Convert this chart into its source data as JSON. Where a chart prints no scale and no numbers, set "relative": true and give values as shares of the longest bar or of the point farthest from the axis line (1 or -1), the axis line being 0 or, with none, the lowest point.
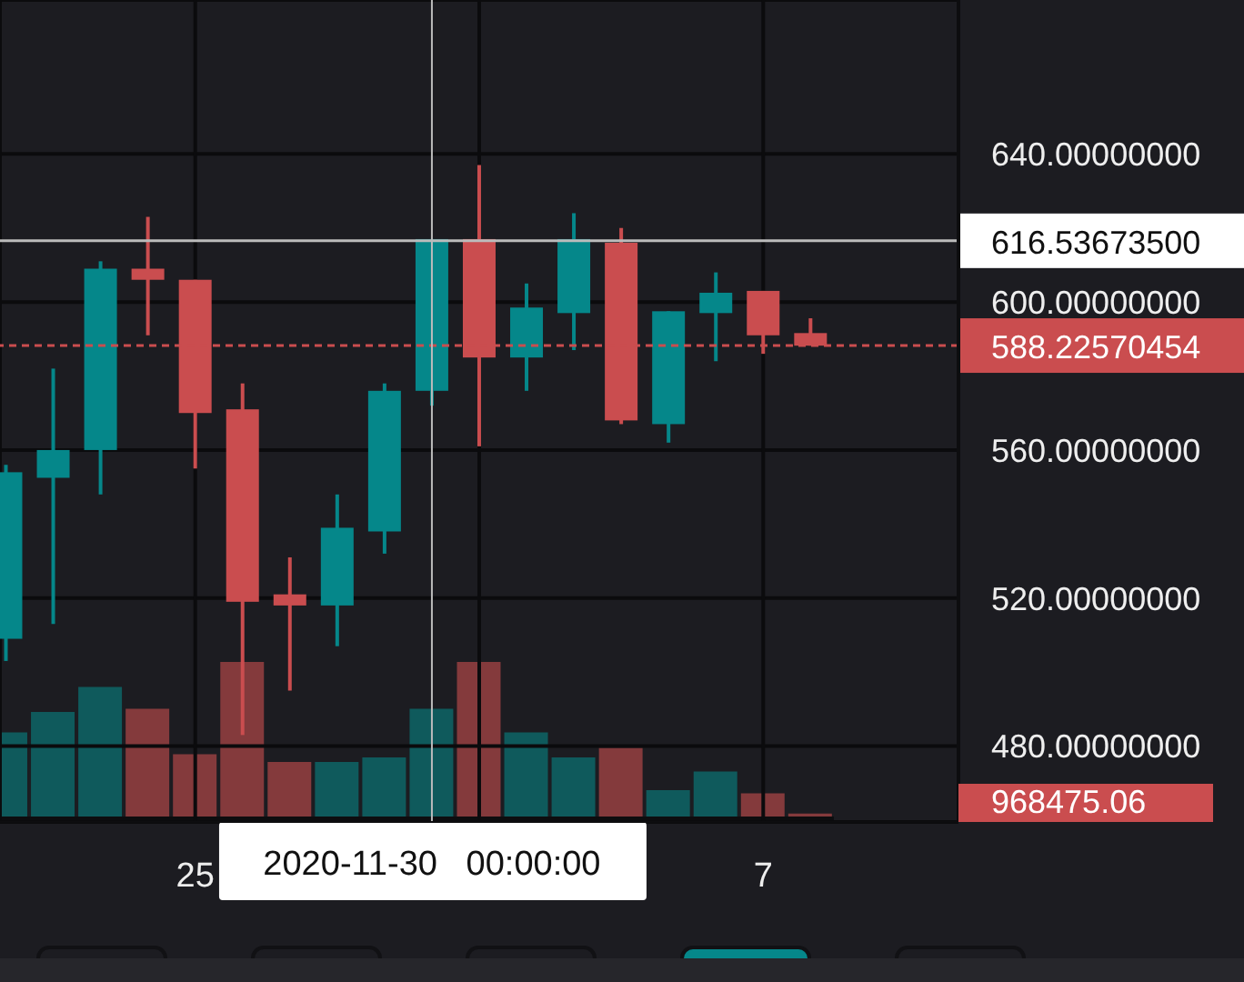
{
  "chart_data": [
    {
      "type": "candlestick",
      "x": [
        "2020-11-21",
        "2020-11-22",
        "2020-11-23",
        "2020-11-24",
        "2020-11-25",
        "2020-11-26",
        "2020-11-27",
        "2020-11-28",
        "2020-11-29",
        "2020-11-30",
        "2020-12-01",
        "2020-12-02",
        "2020-12-03",
        "2020-12-04",
        "2020-12-05",
        "2020-12-06",
        "2020-12-07",
        "2020-12-08"
      ],
      "ohlc": [
        [
          509,
          556,
          503,
          554
        ],
        [
          552.5,
          582,
          513,
          560
        ],
        [
          560,
          611,
          548,
          609
        ],
        [
          609,
          623,
          591,
          606
        ],
        [
          606,
          606,
          555,
          570
        ],
        [
          571,
          578,
          483,
          519
        ],
        [
          521,
          531,
          495,
          518
        ],
        [
          518,
          548,
          507,
          539
        ],
        [
          538,
          578,
          532,
          576
        ],
        [
          576,
          617,
          572,
          617
        ],
        [
          617,
          637,
          561,
          585
        ],
        [
          585,
          605,
          576,
          598.5
        ],
        [
          597,
          624,
          587,
          617
        ],
        [
          616,
          620,
          567,
          568
        ],
        [
          567,
          597.5,
          562,
          597.5
        ],
        [
          597,
          608,
          584,
          602.5
        ],
        [
          603,
          603,
          586,
          591
        ],
        [
          591.6,
          595.6,
          588.2,
          588.2
        ]
      ],
      "colors": [
        "#05878a",
        "#05878a",
        "#05878a",
        "#ca4d4f",
        "#ca4d4f",
        "#ca4d4f",
        "#ca4d4f",
        "#05878a",
        "#05878a",
        "#05878a",
        "#ca4d4f",
        "#05878a",
        "#05878a",
        "#ca4d4f",
        "#05878a",
        "#05878a",
        "#ca4d4f",
        "#ca4d4f"
      ],
      "xlim": [
        "2020-11-20T21:00",
        "2020-12-11T03:00"
      ],
      "xticks": [
        {
          "value": "2020-11-25",
          "label": "25"
        },
        {
          "value": "2020-12-01",
          "label": null
        },
        {
          "value": "2020-12-07",
          "label": "7"
        }
      ],
      "ylim": [
        459.5,
        681.6
      ],
      "yticks": [
        {
          "value": 480,
          "label": "480.00000000"
        },
        {
          "value": 520,
          "label": "520.00000000"
        },
        {
          "value": 560,
          "label": "560.00000000"
        },
        {
          "value": 600,
          "label": "600.00000000"
        },
        {
          "value": 640,
          "label": "640.00000000"
        }
      ],
      "grid": true,
      "ref_lines": [
        {
          "axis": "y",
          "value": 588.22570454,
          "label": "588.22570454",
          "color": "#ca4d4f",
          "line_style": "dashed"
        },
        {
          "axis": "y",
          "value": 616.536735,
          "label": "616.53673500",
          "color": "#bbbbbb",
          "line_style": "solid"
        },
        {
          "axis": "x",
          "value": "2020-11-30",
          "label": "2020-11-30   00:00:00",
          "color": "#bbbbbb",
          "line_style": "solid"
        }
      ]
    },
    {
      "type": "bar",
      "relative": true,
      "categories": [
        null,
        null,
        null,
        null,
        null,
        null,
        null,
        null,
        null,
        null,
        null,
        null,
        null,
        null,
        null,
        null,
        null,
        null
      ],
      "values": [
        0.55,
        0.68,
        0.84,
        0.7,
        0.41,
        1,
        0.36,
        0.36,
        0.39,
        0.7,
        1,
        0.55,
        0.39,
        0.45,
        0.18,
        0.3,
        0.16,
        0.03
      ],
      "colors": [
        "#0f5a5c",
        "#0f5a5c",
        "#0f5a5c",
        "#843a3c",
        "#843a3c",
        "#843a3c",
        "#843a3c",
        "#0f5a5c",
        "#0f5a5c",
        "#0f5a5c",
        "#843a3c",
        "#0f5a5c",
        "#0f5a5c",
        "#843a3c",
        "#0f5a5c",
        "#0f5a5c",
        "#843a3c",
        "#843a3c"
      ],
      "annotations": [
        "968475.06"
      ]
    }
  ]
}
